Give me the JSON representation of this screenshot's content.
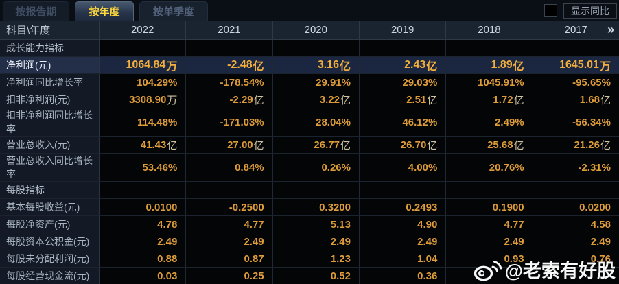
{
  "tabs": [
    {
      "label": "按报告期",
      "active": false
    },
    {
      "label": "按年度",
      "active": true
    },
    {
      "label": "按单季度",
      "active": false
    }
  ],
  "controls": {
    "show_yoy_label": "显示同比",
    "checkbox_checked": false,
    "more_icon": "»"
  },
  "colors": {
    "active_tab_text": "#ffd83e",
    "value_gold": "#dd9c39",
    "highlight_row_bg": "#1b2740",
    "label_column_bg": "#131a26"
  },
  "table": {
    "header": [
      "科目\\年度",
      "2022",
      "2021",
      "2020",
      "2019",
      "2018",
      "2017"
    ],
    "rows": [
      {
        "label": "成长能力指标",
        "type": "section",
        "values": [
          "",
          "",
          "",
          "",
          "",
          ""
        ]
      },
      {
        "label": "净利润(元)",
        "type": "highlight",
        "values": [
          "1064.84万",
          "-2.48亿",
          "3.16亿",
          "2.43亿",
          "1.89亿",
          "1645.01万"
        ]
      },
      {
        "label": "净利润同比增长率",
        "type": "normal",
        "values": [
          "104.29%",
          "-178.54%",
          "29.91%",
          "29.03%",
          "1045.91%",
          "-95.65%"
        ]
      },
      {
        "label": "扣非净利润(元)",
        "type": "normal",
        "values": [
          "3308.90万",
          "-2.29亿",
          "3.22亿",
          "2.51亿",
          "1.72亿",
          "1.68亿"
        ]
      },
      {
        "label": "扣非净利润同比增长率",
        "type": "normal",
        "values": [
          "114.48%",
          "-171.03%",
          "28.04%",
          "46.12%",
          "2.49%",
          "-56.34%"
        ]
      },
      {
        "label": "营业总收入(元)",
        "type": "normal",
        "values": [
          "41.43亿",
          "27.00亿",
          "26.77亿",
          "26.70亿",
          "25.68亿",
          "21.26亿"
        ]
      },
      {
        "label": "营业总收入同比增长率",
        "type": "normal",
        "values": [
          "53.46%",
          "0.84%",
          "0.26%",
          "4.00%",
          "20.76%",
          "-2.31%"
        ]
      },
      {
        "label": "每股指标",
        "type": "section",
        "values": [
          "",
          "",
          "",
          "",
          "",
          ""
        ]
      },
      {
        "label": "基本每股收益(元)",
        "type": "normal",
        "values": [
          "0.0100",
          "-0.2500",
          "0.3200",
          "0.2493",
          "0.1900",
          "0.0200"
        ]
      },
      {
        "label": "每股净资产(元)",
        "type": "normal",
        "values": [
          "4.78",
          "4.77",
          "5.13",
          "4.90",
          "4.77",
          "4.58"
        ]
      },
      {
        "label": "每股资本公积金(元)",
        "type": "normal",
        "values": [
          "2.49",
          "2.49",
          "2.49",
          "2.49",
          "2.49",
          "2.49"
        ]
      },
      {
        "label": "每股未分配利润(元)",
        "type": "normal",
        "values": [
          "0.88",
          "0.87",
          "1.23",
          "1.04",
          "0.93",
          "0.76"
        ]
      },
      {
        "label": "每股经营现金流(元)",
        "type": "normal",
        "values": [
          "0.03",
          "0.25",
          "0.52",
          "0.36",
          "",
          ""
        ]
      }
    ]
  },
  "watermark": {
    "text": "@老索有好股",
    "icon": "weibo"
  }
}
